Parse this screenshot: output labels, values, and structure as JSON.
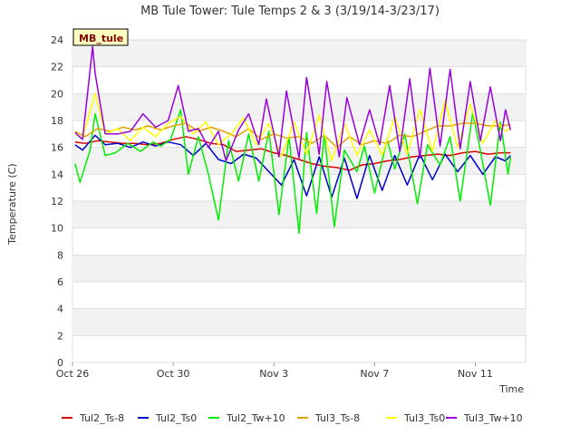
{
  "chart_data": {
    "type": "line",
    "title": "MB Tule Tower: Tule Temps 2 & 3 (3/19/14-3/23/17)",
    "xlabel": "Time",
    "ylabel": "Temperature (C)",
    "site_badge": "MB_tule",
    "ylim": [
      0,
      24
    ],
    "yticks": [
      0,
      2,
      4,
      6,
      8,
      10,
      12,
      14,
      16,
      18,
      20,
      22,
      24
    ],
    "x_range_days": [
      0,
      18
    ],
    "xticks": [
      {
        "day": 0,
        "label": "Oct 26"
      },
      {
        "day": 4,
        "label": "Oct 30"
      },
      {
        "day": 8,
        "label": "Nov 3"
      },
      {
        "day": 12,
        "label": "Nov 7"
      },
      {
        "day": 16,
        "label": "Nov 11"
      }
    ],
    "x_unit": "days since Oct 26",
    "series": [
      {
        "name": "Tul2_Ts-8",
        "color": "#dd0000",
        "x": [
          0.1,
          0.5,
          1,
          1.5,
          2,
          2.5,
          3,
          3.5,
          4,
          4.5,
          5,
          5.5,
          6,
          6.5,
          7,
          7.5,
          8,
          8.5,
          9,
          9.5,
          10,
          10.5,
          11,
          11.5,
          12,
          12.5,
          13,
          13.5,
          14,
          14.5,
          15,
          15.5,
          16,
          16.5,
          17,
          17.4
        ],
        "values": [
          16.4,
          16.3,
          16.5,
          16.4,
          16.3,
          16.3,
          16.2,
          16.3,
          16.6,
          16.8,
          16.6,
          16.3,
          16.2,
          15.7,
          15.8,
          15.9,
          15.6,
          15.4,
          15.1,
          14.8,
          14.6,
          14.5,
          14.3,
          14.7,
          14.8,
          15.0,
          15.1,
          15.3,
          15.4,
          15.5,
          15.4,
          15.6,
          15.7,
          15.5,
          15.6,
          15.6
        ]
      },
      {
        "name": "Tul2_Ts0",
        "color": "#0000cc",
        "x": [
          0.1,
          0.4,
          0.9,
          1.3,
          1.8,
          2.3,
          2.8,
          3.3,
          3.8,
          4.3,
          4.8,
          5.3,
          5.8,
          6.3,
          6.8,
          7.3,
          7.8,
          8.3,
          8.8,
          9.3,
          9.8,
          10.3,
          10.8,
          11.3,
          11.8,
          12.3,
          12.8,
          13.3,
          13.8,
          14.3,
          14.8,
          15.3,
          15.8,
          16.3,
          16.8,
          17.2,
          17.4
        ],
        "values": [
          16.2,
          15.8,
          16.9,
          16.2,
          16.3,
          16.0,
          16.4,
          16.1,
          16.4,
          16.2,
          15.4,
          16.3,
          15.1,
          14.8,
          15.5,
          15.2,
          14.2,
          13.2,
          15.1,
          12.4,
          15.3,
          12.3,
          15.2,
          12.2,
          15.4,
          12.8,
          15.4,
          13.2,
          15.5,
          13.6,
          15.5,
          14.2,
          15.4,
          14.0,
          15.3,
          15.0,
          15.4
        ]
      },
      {
        "name": "Tul2_Tw+10",
        "color": "#00ee00",
        "x": [
          0.1,
          0.3,
          0.7,
          0.9,
          1.3,
          1.7,
          2.2,
          2.7,
          3.2,
          3.5,
          3.9,
          4.3,
          4.6,
          5.0,
          5.4,
          5.8,
          6.2,
          6.6,
          7.0,
          7.4,
          7.8,
          8.2,
          8.6,
          9.0,
          9.3,
          9.7,
          10.0,
          10.4,
          10.8,
          11.3,
          11.6,
          12.0,
          12.5,
          12.8,
          13.2,
          13.7,
          14.1,
          14.6,
          15.0,
          15.4,
          15.9,
          16.2,
          16.6,
          17.0,
          17.3,
          17.4
        ],
        "values": [
          14.8,
          13.4,
          15.8,
          18.5,
          15.4,
          15.6,
          16.3,
          15.7,
          16.4,
          16.1,
          16.6,
          18.8,
          14.0,
          16.8,
          14.0,
          10.6,
          16.5,
          13.5,
          17.0,
          13.5,
          17.2,
          11.0,
          16.8,
          9.6,
          17.1,
          11.1,
          17.0,
          10.1,
          15.8,
          14.2,
          16.1,
          12.6,
          16.6,
          14.4,
          17.0,
          11.8,
          16.2,
          14.7,
          16.8,
          12.0,
          18.6,
          15.8,
          11.7,
          17.9,
          14.0,
          15.3
        ]
      },
      {
        "name": "Tul3_Ts-8",
        "color": "#e0a000",
        "x": [
          0.1,
          0.5,
          1,
          1.5,
          2,
          2.5,
          3,
          3.5,
          4,
          4.5,
          5,
          5.5,
          6,
          6.5,
          7,
          7.5,
          8,
          8.5,
          9,
          9.5,
          10,
          10.5,
          11,
          11.5,
          12,
          12.5,
          13,
          13.5,
          14,
          14.5,
          15,
          15.5,
          16,
          16.5,
          17,
          17.4
        ],
        "values": [
          17.2,
          16.8,
          17.4,
          17.2,
          17.5,
          17.3,
          17.6,
          17.3,
          17.6,
          17.8,
          17.2,
          17.5,
          17.2,
          16.8,
          17.4,
          16.6,
          17.0,
          16.7,
          16.8,
          16.3,
          16.9,
          16.0,
          16.8,
          16.2,
          16.5,
          16.3,
          16.9,
          16.8,
          17.2,
          17.6,
          17.6,
          17.8,
          17.8,
          17.6,
          17.6,
          17.7
        ]
      },
      {
        "name": "Tul3_Ts0",
        "color": "#ffff00",
        "x": [
          0.1,
          0.4,
          0.9,
          1.3,
          1.8,
          2.3,
          2.8,
          3.3,
          3.8,
          4.3,
          4.8,
          5.3,
          5.8,
          6.3,
          6.8,
          7.3,
          7.8,
          8.3,
          8.8,
          9.3,
          9.8,
          10.3,
          10.8,
          11.3,
          11.8,
          12.3,
          12.8,
          13.3,
          13.8,
          14.3,
          14.8,
          15.3,
          15.8,
          16.3,
          16.8,
          17.2,
          17.4
        ],
        "values": [
          17.0,
          16.7,
          20.0,
          17.0,
          17.4,
          16.5,
          17.5,
          16.8,
          17.8,
          18.3,
          17.0,
          17.9,
          16.2,
          17.0,
          18.2,
          16.2,
          17.8,
          15.3,
          17.9,
          15.5,
          18.4,
          15.0,
          17.8,
          15.4,
          17.3,
          15.4,
          18.3,
          15.5,
          18.8,
          15.7,
          19.5,
          16.0,
          19.2,
          16.3,
          18.0,
          17.2,
          17.5
        ]
      },
      {
        "name": "Tul3_Tw+10",
        "color": "#9900dd",
        "x": [
          0.1,
          0.4,
          0.8,
          0.9,
          1.3,
          1.8,
          2.3,
          2.8,
          3.3,
          3.8,
          4.2,
          4.6,
          5.0,
          5.4,
          5.8,
          6.1,
          6.6,
          7.0,
          7.4,
          7.7,
          8.2,
          8.5,
          9.0,
          9.3,
          9.8,
          10.1,
          10.6,
          10.9,
          11.4,
          11.8,
          12.2,
          12.6,
          13.0,
          13.4,
          13.8,
          14.2,
          14.6,
          15.0,
          15.4,
          15.8,
          16.2,
          16.6,
          17.0,
          17.2,
          17.4
        ],
        "values": [
          17.1,
          16.6,
          23.5,
          21.5,
          17.0,
          17.0,
          17.2,
          18.5,
          17.5,
          18.0,
          20.6,
          17.2,
          17.4,
          16.0,
          17.2,
          15.0,
          17.3,
          18.5,
          16.2,
          19.6,
          15.3,
          20.2,
          15.2,
          21.2,
          15.5,
          20.9,
          15.3,
          19.7,
          16.2,
          18.8,
          16.2,
          20.6,
          15.7,
          21.1,
          15.2,
          21.9,
          16.1,
          21.8,
          15.9,
          20.9,
          16.5,
          20.5,
          16.5,
          18.8,
          17.3
        ]
      }
    ]
  }
}
